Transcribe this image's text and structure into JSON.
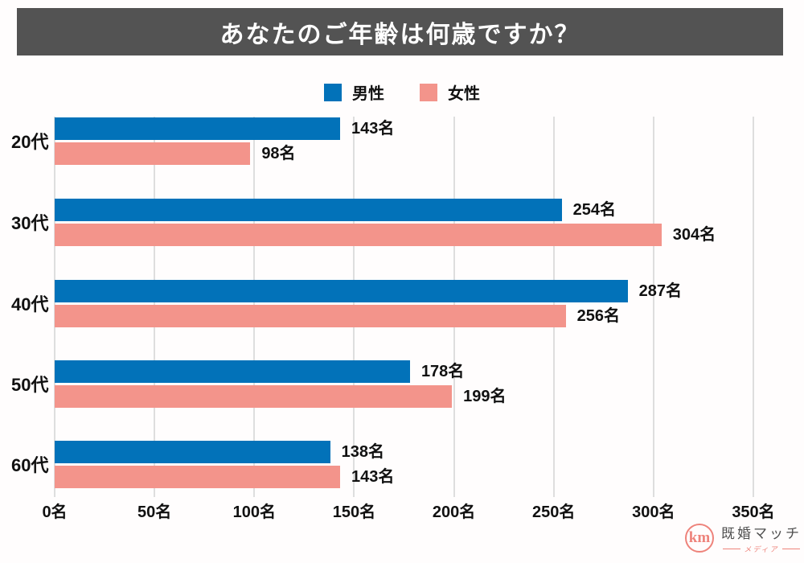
{
  "title": "あなたのご年齢は何歳ですか？",
  "colors": {
    "background": "#fffdfd",
    "title_bar": "#535353",
    "title_text": "#ffffff",
    "grid": "#dedede",
    "label_text": "#111111",
    "male_blue": "#0272b9",
    "female_pink": "#f3948b",
    "brand_pink": "#ee837b",
    "brand_gray": "#4f4f4f"
  },
  "chart_data": {
    "type": "bar",
    "orientation": "horizontal",
    "title": "あなたのご年齢は何歳ですか？",
    "categories": [
      "20代",
      "30代",
      "40代",
      "50代",
      "60代"
    ],
    "series": [
      {
        "name": "男性",
        "color": "#0272b9",
        "values": [
          143,
          254,
          287,
          178,
          138
        ]
      },
      {
        "name": "女性",
        "color": "#f3948b",
        "values": [
          98,
          304,
          256,
          199,
          143
        ]
      }
    ],
    "value_suffix": "名",
    "data_labels": {
      "男性": [
        "143名",
        "254名",
        "287名",
        "178名",
        "138名"
      ],
      "女性": [
        "98名",
        "304名",
        "256名",
        "199名",
        "143名"
      ]
    },
    "x_ticks": [
      {
        "value": 0,
        "label": "0名"
      },
      {
        "value": 50,
        "label": "50名"
      },
      {
        "value": 100,
        "label": "100名"
      },
      {
        "value": 150,
        "label": "150名"
      },
      {
        "value": 200,
        "label": "200名"
      },
      {
        "value": 250,
        "label": "250名"
      },
      {
        "value": 300,
        "label": "300名"
      },
      {
        "value": 350,
        "label": "350名"
      }
    ],
    "xlim": [
      0,
      350
    ],
    "grid": true,
    "legend_position": "top-center"
  },
  "logo": {
    "monogram": "km",
    "name": "既婚マッチ",
    "tagline": "メディア"
  }
}
